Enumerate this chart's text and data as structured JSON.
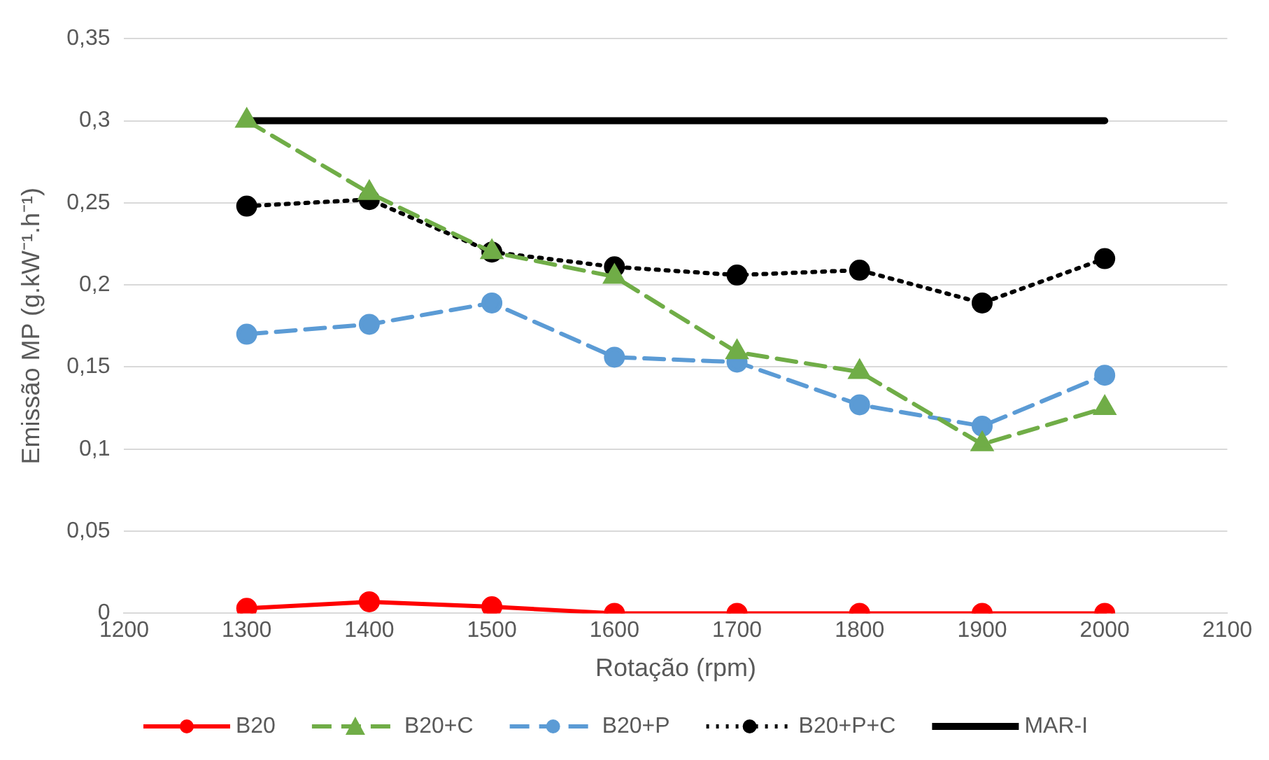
{
  "chart_data": {
    "type": "line",
    "xlabel": "Rotação (rpm)",
    "ylabel": "Emissão MP (g.kW⁻¹.h⁻¹)",
    "x": [
      1300,
      1400,
      1500,
      1600,
      1700,
      1800,
      1900,
      2000
    ],
    "xlim": [
      1200,
      2100
    ],
    "xticks": [
      1200,
      1300,
      1400,
      1500,
      1600,
      1700,
      1800,
      1900,
      2000,
      2100
    ],
    "ylim": [
      0,
      0.35
    ],
    "yticks": [
      {
        "value": 0,
        "label": "0"
      },
      {
        "value": 0.05,
        "label": "0,05"
      },
      {
        "value": 0.1,
        "label": "0,1"
      },
      {
        "value": 0.15,
        "label": "0,15"
      },
      {
        "value": 0.2,
        "label": "0,2"
      },
      {
        "value": 0.25,
        "label": "0,25"
      },
      {
        "value": 0.3,
        "label": "0,3"
      },
      {
        "value": 0.35,
        "label": "0,35"
      }
    ],
    "grid": "y",
    "legend": "bottom",
    "series": [
      {
        "name": "B20",
        "color": "#ff0000",
        "marker": "circle",
        "line_style": "solid",
        "values": [
          0.003,
          0.007,
          0.004,
          0,
          0,
          0,
          0,
          0
        ]
      },
      {
        "name": "B20+C",
        "color": "#70ad47",
        "marker": "triangle",
        "line_style": "dashed",
        "values": [
          0.3,
          0.256,
          0.22,
          0.205,
          0.159,
          0.147,
          0.103,
          0.125
        ]
      },
      {
        "name": "B20+P",
        "color": "#5b9bd5",
        "marker": "circle",
        "line_style": "dashed",
        "values": [
          0.17,
          0.176,
          0.189,
          0.156,
          0.153,
          0.127,
          0.114,
          0.145
        ]
      },
      {
        "name": "B20+P+C",
        "color": "#000000",
        "marker": "circle",
        "line_style": "dotted",
        "values": [
          0.248,
          0.252,
          0.22,
          0.211,
          0.206,
          0.209,
          0.189,
          0.216
        ]
      },
      {
        "name": "MAR-I",
        "color": "#000000",
        "marker": "none",
        "line_style": "solid",
        "values": [
          0.3,
          0.3,
          0.3,
          0.3,
          0.3,
          0.3,
          0.3,
          0.3
        ]
      }
    ]
  }
}
